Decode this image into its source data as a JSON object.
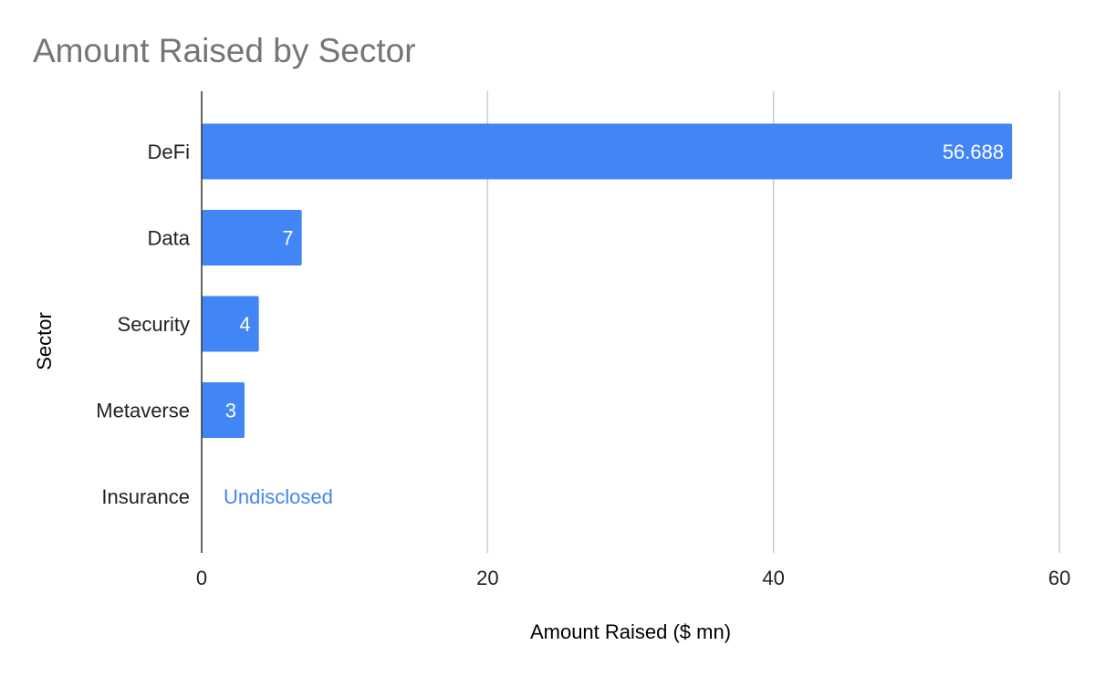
{
  "chart_data": {
    "type": "bar",
    "orientation": "horizontal",
    "title": "Amount Raised by Sector",
    "xlabel": "Amount Raised ($ mn)",
    "ylabel": "Sector",
    "categories": [
      "DeFi",
      "Data",
      "Security",
      "Metaverse",
      "Insurance"
    ],
    "values": [
      56.688,
      7,
      4,
      3,
      null
    ],
    "data_labels": [
      "56.688",
      "7",
      "4",
      "3",
      "Undisclosed"
    ],
    "xlim": [
      0,
      60
    ],
    "xticks": [
      0,
      20,
      40,
      60
    ],
    "xtick_labels": [
      "0",
      "20",
      "40",
      "60"
    ],
    "grid": true,
    "legend": "none",
    "colors": {
      "bar": "#4285f4",
      "label_inside": "#ffffff",
      "label_outside": "#4285f4",
      "grid": "#cccccc",
      "axis": "#333333",
      "title": "#757575"
    }
  }
}
